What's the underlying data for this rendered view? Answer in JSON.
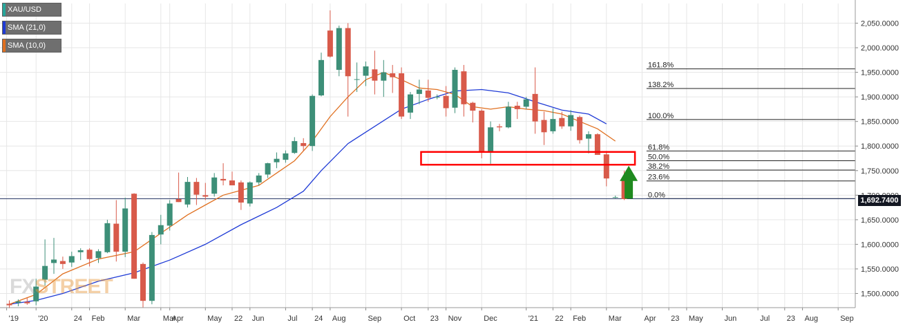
{
  "legend": [
    {
      "label": "XAU/USD",
      "color": "#26a69a"
    },
    {
      "label": "SMA (21,0)",
      "color": "#1f3bd6"
    },
    {
      "label": "SMA (10,0)",
      "color": "#e07020"
    }
  ],
  "watermark": {
    "part1": "FX",
    "part2": "STREET"
  },
  "colors": {
    "up": "#3d8f78",
    "down": "#d85a4a",
    "sma21": "#1f3bd6",
    "sma10": "#e07020",
    "grid": "#e6e6e6",
    "box": "#ff0000",
    "arrow": "#1f8a1f",
    "fib": "#222222",
    "current_line": "#2a3a66"
  },
  "chart_data": {
    "type": "candlestick",
    "symbol": "XAU/USD",
    "ylim": [
      1470,
      2080
    ],
    "y_ticks": [
      {
        "value": 1500,
        "label": "1,500.0000"
      },
      {
        "value": 1550,
        "label": "1,550.0000"
      },
      {
        "value": 1600,
        "label": "1,600.0000"
      },
      {
        "value": 1650,
        "label": "1,650.0000"
      },
      {
        "value": 1700,
        "label": "1,700.0000"
      },
      {
        "value": 1750,
        "label": "1,750.0000"
      },
      {
        "value": 1800,
        "label": "1,800.0000"
      },
      {
        "value": 1850,
        "label": "1,850.0000"
      },
      {
        "value": 1900,
        "label": "1,900.0000"
      },
      {
        "value": 1950,
        "label": "1,950.0000"
      },
      {
        "value": 2000,
        "label": "2,000.0000"
      },
      {
        "value": 2050,
        "label": "2,050.0000"
      }
    ],
    "x_ticks": [
      {
        "index": -0.3,
        "label": "'19"
      },
      {
        "index": 3,
        "label": "'20"
      },
      {
        "index": 7,
        "label": "24"
      },
      {
        "index": 9,
        "label": "Feb"
      },
      {
        "index": 13,
        "label": "Mar"
      },
      {
        "index": 17,
        "label": "Mar"
      },
      {
        "index": 18,
        "label": "Apr"
      },
      {
        "index": 22,
        "label": "May"
      },
      {
        "index": 25,
        "label": "22"
      },
      {
        "index": 27,
        "label": "Jun"
      },
      {
        "index": 31,
        "label": "Jul"
      },
      {
        "index": 34,
        "label": "24"
      },
      {
        "index": 36,
        "label": "Aug"
      },
      {
        "index": 40,
        "label": "Sep"
      },
      {
        "index": 44,
        "label": "Oct"
      },
      {
        "index": 47,
        "label": "23"
      },
      {
        "index": 49,
        "label": "Nov"
      },
      {
        "index": 53,
        "label": "Dec"
      },
      {
        "index": 58,
        "label": "'21"
      },
      {
        "index": 61,
        "label": "22"
      },
      {
        "index": 63,
        "label": "Feb"
      },
      {
        "index": 67,
        "label": "Mar"
      },
      {
        "index": 71,
        "label": "Apr"
      },
      {
        "index": 74,
        "label": "23"
      },
      {
        "index": 76,
        "label": "May"
      },
      {
        "index": 80,
        "label": "Jun"
      },
      {
        "index": 84,
        "label": "Jul"
      },
      {
        "index": 87,
        "label": "23"
      },
      {
        "index": 89,
        "label": "Aug"
      },
      {
        "index": 93,
        "label": "Sep"
      }
    ],
    "candles": [
      {
        "o": 1479,
        "h": 1486,
        "l": 1470,
        "c": 1476
      },
      {
        "o": 1481,
        "h": 1488,
        "l": 1474,
        "c": 1484
      },
      {
        "o": 1483,
        "h": 1491,
        "l": 1477,
        "c": 1480
      },
      {
        "o": 1484,
        "h": 1530,
        "l": 1476,
        "c": 1514
      },
      {
        "o": 1528,
        "h": 1610,
        "l": 1516,
        "c": 1556
      },
      {
        "o": 1562,
        "h": 1613,
        "l": 1540,
        "c": 1569
      },
      {
        "o": 1566,
        "h": 1575,
        "l": 1550,
        "c": 1560
      },
      {
        "o": 1563,
        "h": 1585,
        "l": 1554,
        "c": 1576
      },
      {
        "o": 1584,
        "h": 1592,
        "l": 1568,
        "c": 1588
      },
      {
        "o": 1589,
        "h": 1592,
        "l": 1555,
        "c": 1570
      },
      {
        "o": 1572,
        "h": 1590,
        "l": 1562,
        "c": 1586
      },
      {
        "o": 1584,
        "h": 1650,
        "l": 1582,
        "c": 1643
      },
      {
        "o": 1642,
        "h": 1690,
        "l": 1565,
        "c": 1585
      },
      {
        "o": 1585,
        "h": 1695,
        "l": 1574,
        "c": 1673
      },
      {
        "o": 1703,
        "h": 1704,
        "l": 1530,
        "c": 1530
      },
      {
        "o": 1560,
        "h": 1563,
        "l": 1471,
        "c": 1485
      },
      {
        "o": 1485,
        "h": 1625,
        "l": 1478,
        "c": 1619
      },
      {
        "o": 1620,
        "h": 1660,
        "l": 1600,
        "c": 1639
      },
      {
        "o": 1638,
        "h": 1690,
        "l": 1628,
        "c": 1683
      },
      {
        "o": 1692,
        "h": 1746,
        "l": 1686,
        "c": 1686
      },
      {
        "o": 1681,
        "h": 1737,
        "l": 1675,
        "c": 1727
      },
      {
        "o": 1727,
        "h": 1735,
        "l": 1680,
        "c": 1701
      },
      {
        "o": 1700,
        "h": 1725,
        "l": 1690,
        "c": 1697
      },
      {
        "o": 1703,
        "h": 1745,
        "l": 1697,
        "c": 1736
      },
      {
        "o": 1733,
        "h": 1765,
        "l": 1720,
        "c": 1730
      },
      {
        "o": 1730,
        "h": 1748,
        "l": 1722,
        "c": 1720
      },
      {
        "o": 1726,
        "h": 1730,
        "l": 1670,
        "c": 1685
      },
      {
        "o": 1683,
        "h": 1728,
        "l": 1677,
        "c": 1726
      },
      {
        "o": 1726,
        "h": 1745,
        "l": 1720,
        "c": 1740
      },
      {
        "o": 1742,
        "h": 1766,
        "l": 1735,
        "c": 1765
      },
      {
        "o": 1767,
        "h": 1787,
        "l": 1755,
        "c": 1774
      },
      {
        "o": 1772,
        "h": 1791,
        "l": 1766,
        "c": 1785
      },
      {
        "o": 1786,
        "h": 1818,
        "l": 1784,
        "c": 1810
      },
      {
        "o": 1806,
        "h": 1816,
        "l": 1790,
        "c": 1800
      },
      {
        "o": 1800,
        "h": 1905,
        "l": 1790,
        "c": 1902
      },
      {
        "o": 1903,
        "h": 1990,
        "l": 1901,
        "c": 1975
      },
      {
        "o": 2035,
        "h": 2076,
        "l": 1980,
        "c": 1982
      },
      {
        "o": 1955,
        "h": 2045,
        "l": 1942,
        "c": 2040
      },
      {
        "o": 2040,
        "h": 2050,
        "l": 1860,
        "c": 1942
      },
      {
        "o": 1935,
        "h": 1970,
        "l": 1910,
        "c": 1936
      },
      {
        "o": 1943,
        "h": 1972,
        "l": 1922,
        "c": 1962
      },
      {
        "o": 1956,
        "h": 1994,
        "l": 1905,
        "c": 1933
      },
      {
        "o": 1933,
        "h": 1975,
        "l": 1900,
        "c": 1950
      },
      {
        "o": 1948,
        "h": 1965,
        "l": 1908,
        "c": 1940
      },
      {
        "o": 1948,
        "h": 1960,
        "l": 1855,
        "c": 1860
      },
      {
        "o": 1868,
        "h": 1910,
        "l": 1855,
        "c": 1905
      },
      {
        "o": 1906,
        "h": 1935,
        "l": 1885,
        "c": 1915
      },
      {
        "o": 1913,
        "h": 1935,
        "l": 1890,
        "c": 1898
      },
      {
        "o": 1900,
        "h": 1905,
        "l": 1895,
        "c": 1900
      },
      {
        "o": 1902,
        "h": 1922,
        "l": 1860,
        "c": 1877
      },
      {
        "o": 1878,
        "h": 1960,
        "l": 1867,
        "c": 1955
      },
      {
        "o": 1952,
        "h": 1965,
        "l": 1860,
        "c": 1885
      },
      {
        "o": 1888,
        "h": 1890,
        "l": 1848,
        "c": 1872
      },
      {
        "o": 1872,
        "h": 1875,
        "l": 1775,
        "c": 1788
      },
      {
        "o": 1788,
        "h": 1850,
        "l": 1764,
        "c": 1838
      },
      {
        "o": 1840,
        "h": 1845,
        "l": 1830,
        "c": 1838
      },
      {
        "o": 1838,
        "h": 1890,
        "l": 1836,
        "c": 1880
      },
      {
        "o": 1882,
        "h": 1890,
        "l": 1855,
        "c": 1875
      },
      {
        "o": 1880,
        "h": 1900,
        "l": 1875,
        "c": 1895
      },
      {
        "o": 1906,
        "h": 1960,
        "l": 1825,
        "c": 1850
      },
      {
        "o": 1853,
        "h": 1870,
        "l": 1802,
        "c": 1828
      },
      {
        "o": 1830,
        "h": 1877,
        "l": 1825,
        "c": 1855
      },
      {
        "o": 1857,
        "h": 1870,
        "l": 1835,
        "c": 1840
      },
      {
        "o": 1840,
        "h": 1873,
        "l": 1831,
        "c": 1863
      },
      {
        "o": 1859,
        "h": 1862,
        "l": 1805,
        "c": 1812
      },
      {
        "o": 1815,
        "h": 1830,
        "l": 1785,
        "c": 1824
      },
      {
        "o": 1824,
        "h": 1826,
        "l": 1785,
        "c": 1782
      },
      {
        "o": 1783,
        "h": 1790,
        "l": 1718,
        "c": 1734
      },
      {
        "o": 1696,
        "h": 1699,
        "l": 1694,
        "c": 1696
      },
      {
        "o": 1734,
        "h": 1750,
        "l": 1690,
        "c": 1692
      }
    ],
    "sma21": [
      [
        0,
        1478
      ],
      [
        3,
        1486
      ],
      [
        6,
        1500
      ],
      [
        10,
        1525
      ],
      [
        14,
        1542
      ],
      [
        18,
        1568
      ],
      [
        22,
        1600
      ],
      [
        26,
        1640
      ],
      [
        30,
        1675
      ],
      [
        33,
        1708
      ],
      [
        35,
        1750
      ],
      [
        38,
        1805
      ],
      [
        41,
        1840
      ],
      [
        44,
        1875
      ],
      [
        47,
        1895
      ],
      [
        50,
        1912
      ],
      [
        53,
        1915
      ],
      [
        56,
        1908
      ],
      [
        59,
        1890
      ],
      [
        62,
        1873
      ],
      [
        65,
        1865
      ],
      [
        67,
        1845
      ]
    ],
    "sma10": [
      [
        0,
        1478
      ],
      [
        3,
        1498
      ],
      [
        6,
        1540
      ],
      [
        10,
        1570
      ],
      [
        14,
        1585
      ],
      [
        16,
        1610
      ],
      [
        18,
        1635
      ],
      [
        20,
        1660
      ],
      [
        22,
        1680
      ],
      [
        24,
        1700
      ],
      [
        26,
        1710
      ],
      [
        28,
        1720
      ],
      [
        30,
        1745
      ],
      [
        32,
        1770
      ],
      [
        34,
        1810
      ],
      [
        36,
        1860
      ],
      [
        38,
        1900
      ],
      [
        40,
        1935
      ],
      [
        42,
        1950
      ],
      [
        44,
        1935
      ],
      [
        46,
        1918
      ],
      [
        48,
        1915
      ],
      [
        50,
        1905
      ],
      [
        52,
        1880
      ],
      [
        54,
        1875
      ],
      [
        56,
        1880
      ],
      [
        58,
        1875
      ],
      [
        60,
        1872
      ],
      [
        62,
        1865
      ],
      [
        64,
        1850
      ],
      [
        66,
        1835
      ],
      [
        68,
        1810
      ]
    ],
    "fib_levels": [
      {
        "value": 1693,
        "label": "0.0%"
      },
      {
        "value": 1729,
        "label": "23.6%"
      },
      {
        "value": 1751,
        "label": "38.2%"
      },
      {
        "value": 1770,
        "label": "50.0%"
      },
      {
        "value": 1790,
        "label": "61.8%"
      },
      {
        "value": 1854,
        "label": "100.0%"
      },
      {
        "value": 1917,
        "label": "138.2%"
      },
      {
        "value": 1957,
        "label": "161.8%"
      }
    ],
    "fib_x_start": 71.5,
    "current_price": {
      "value": 1692.74,
      "label": "1,692.7400"
    },
    "support_box": {
      "x0": 46.2,
      "x1": 70.2,
      "y0": 1762,
      "y1": 1788
    },
    "arrow": {
      "x": 69.5,
      "y_bottom": 1693,
      "y_top": 1760
    }
  }
}
